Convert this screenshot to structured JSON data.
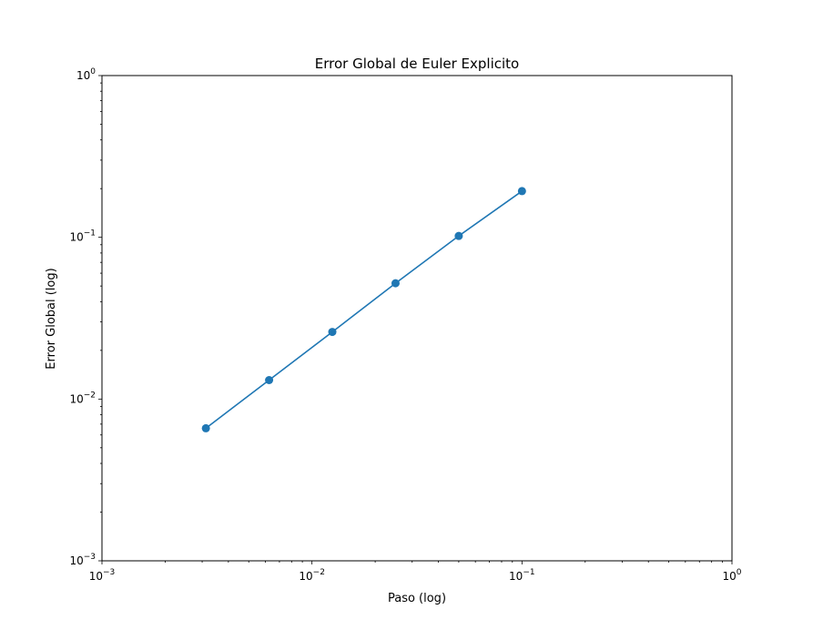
{
  "chart_data": {
    "type": "line",
    "title": "Error Global de Euler Explicito",
    "xlabel": "Paso (log)",
    "ylabel": "Error Global (log)",
    "xscale": "log",
    "yscale": "log",
    "xlim": [
      0.001,
      1
    ],
    "ylim": [
      0.001,
      1
    ],
    "x_ticks": [
      {
        "base": "10",
        "exp": "−3",
        "value": 0.001
      },
      {
        "base": "10",
        "exp": "−2",
        "value": 0.01
      },
      {
        "base": "10",
        "exp": "−1",
        "value": 0.1
      },
      {
        "base": "10",
        "exp": "0",
        "value": 1
      }
    ],
    "y_ticks": [
      {
        "base": "10",
        "exp": "−3",
        "value": 0.001
      },
      {
        "base": "10",
        "exp": "−2",
        "value": 0.01
      },
      {
        "base": "10",
        "exp": "−1",
        "value": 0.1
      },
      {
        "base": "10",
        "exp": "0",
        "value": 1
      }
    ],
    "grid": false,
    "marker": "circle",
    "color": "#1f77b4",
    "series": [
      {
        "x": [
          0.003125,
          0.00625,
          0.0125,
          0.025,
          0.05,
          0.1
        ],
        "y": [
          0.0066,
          0.0131,
          0.026,
          0.052,
          0.102,
          0.193
        ]
      }
    ]
  }
}
